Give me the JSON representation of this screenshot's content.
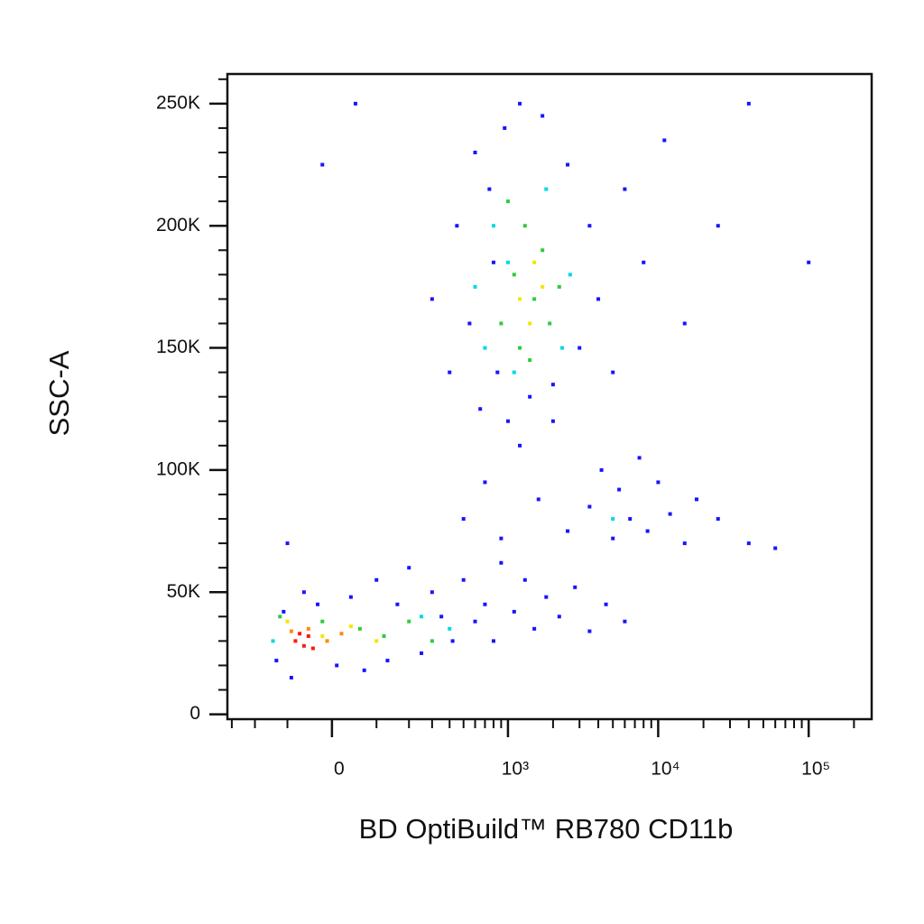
{
  "chart_data": {
    "type": "scatter",
    "x_label": "BD OptiBuild™ RB780 CD11b",
    "y_label": "SSC-A",
    "xscale": "biexponential",
    "xlim": [
      -323,
      262144
    ],
    "ylim": [
      -2000,
      262144
    ],
    "xticks": [
      0,
      {
        "value": 1000,
        "label": "10³"
      },
      {
        "value": 10000,
        "label": "10⁴"
      },
      {
        "value": 100000,
        "label": "10⁵"
      }
    ],
    "xminorticks": [
      -300,
      -200,
      -100,
      100,
      200,
      300,
      400,
      500,
      600,
      700,
      800,
      900,
      2000,
      3000,
      4000,
      5000,
      6000,
      7000,
      8000,
      9000,
      20000,
      30000,
      40000,
      50000,
      60000,
      70000,
      80000,
      90000,
      200000
    ],
    "yticks": [
      0,
      {
        "value": 50000,
        "label": "50K"
      },
      {
        "value": 100000,
        "label": "100K"
      },
      {
        "value": 150000,
        "label": "150K"
      },
      {
        "value": 200000,
        "label": "200K"
      },
      {
        "value": 250000,
        "label": "250K"
      }
    ],
    "yminorticks": [
      10000,
      20000,
      30000,
      40000,
      60000,
      70000,
      80000,
      90000,
      110000,
      120000,
      130000,
      140000,
      160000,
      170000,
      180000,
      190000,
      210000,
      220000,
      230000,
      240000,
      260000
    ],
    "series": [
      {
        "color": "#1a14ff",
        "x": [
          -130,
          -110,
          -90,
          -60,
          -30,
          10,
          40,
          70,
          100,
          130,
          160,
          200,
          250,
          300,
          350,
          420,
          500,
          600,
          700,
          800,
          900,
          1100,
          1300,
          1500,
          1800,
          2200,
          2800,
          3500,
          4500,
          6000,
          500,
          700,
          900,
          1200,
          1600,
          2000,
          2500,
          3500,
          4200,
          5000,
          5500,
          6500,
          7500,
          8500,
          10000,
          12000,
          15000,
          18000,
          25000,
          40000,
          60000,
          300,
          400,
          450,
          550,
          600,
          650,
          750,
          800,
          850,
          950,
          1000,
          1200,
          1400,
          1700,
          2000,
          2500,
          3000,
          3500,
          4000,
          5000,
          6000,
          8000,
          11000,
          15000,
          25000,
          40000,
          100000,
          -100,
          -20,
          50
        ],
        "y": [
          22000,
          42000,
          15000,
          50000,
          45000,
          20000,
          48000,
          18000,
          55000,
          22000,
          45000,
          60000,
          25000,
          50000,
          40000,
          30000,
          55000,
          38000,
          45000,
          30000,
          62000,
          42000,
          55000,
          35000,
          48000,
          40000,
          52000,
          34000,
          45000,
          38000,
          80000,
          95000,
          72000,
          110000,
          88000,
          120000,
          75000,
          85000,
          100000,
          72000,
          92000,
          80000,
          105000,
          75000,
          95000,
          82000,
          70000,
          88000,
          80000,
          70000,
          68000,
          170000,
          140000,
          200000,
          160000,
          230000,
          125000,
          215000,
          185000,
          140000,
          240000,
          120000,
          250000,
          130000,
          245000,
          135000,
          225000,
          150000,
          200000,
          170000,
          140000,
          215000,
          185000,
          235000,
          160000,
          200000,
          250000,
          185000,
          70000,
          225000,
          250000
        ]
      },
      {
        "color": "#00d8e8",
        "x": [
          700,
          800,
          1100,
          1800,
          2600,
          2300,
          1000,
          600,
          5000,
          400,
          250,
          -140
        ],
        "y": [
          150000,
          200000,
          140000,
          215000,
          180000,
          150000,
          185000,
          175000,
          80000,
          35000,
          40000,
          30000
        ]
      },
      {
        "color": "#2ecc3a",
        "x": [
          900,
          1100,
          1200,
          1300,
          1500,
          1700,
          1900,
          2200,
          1000,
          1400,
          -120,
          -20,
          60,
          120,
          200,
          300
        ],
        "y": [
          160000,
          180000,
          150000,
          200000,
          170000,
          190000,
          160000,
          175000,
          210000,
          145000,
          40000,
          38000,
          35000,
          32000,
          38000,
          30000
        ]
      },
      {
        "color": "#f5e400",
        "x": [
          1200,
          1500,
          1400,
          -100,
          -20,
          40,
          100,
          1700
        ],
        "y": [
          170000,
          185000,
          160000,
          38000,
          32000,
          36000,
          30000,
          175000
        ]
      },
      {
        "color": "#ff8a00",
        "x": [
          -90,
          -50,
          -10,
          20
        ],
        "y": [
          34000,
          35000,
          30000,
          33000
        ]
      },
      {
        "color": "#ff1a10",
        "x": [
          -80,
          -60,
          -50,
          -40,
          -70
        ],
        "y": [
          30000,
          28000,
          32000,
          27000,
          33000
        ]
      }
    ]
  }
}
